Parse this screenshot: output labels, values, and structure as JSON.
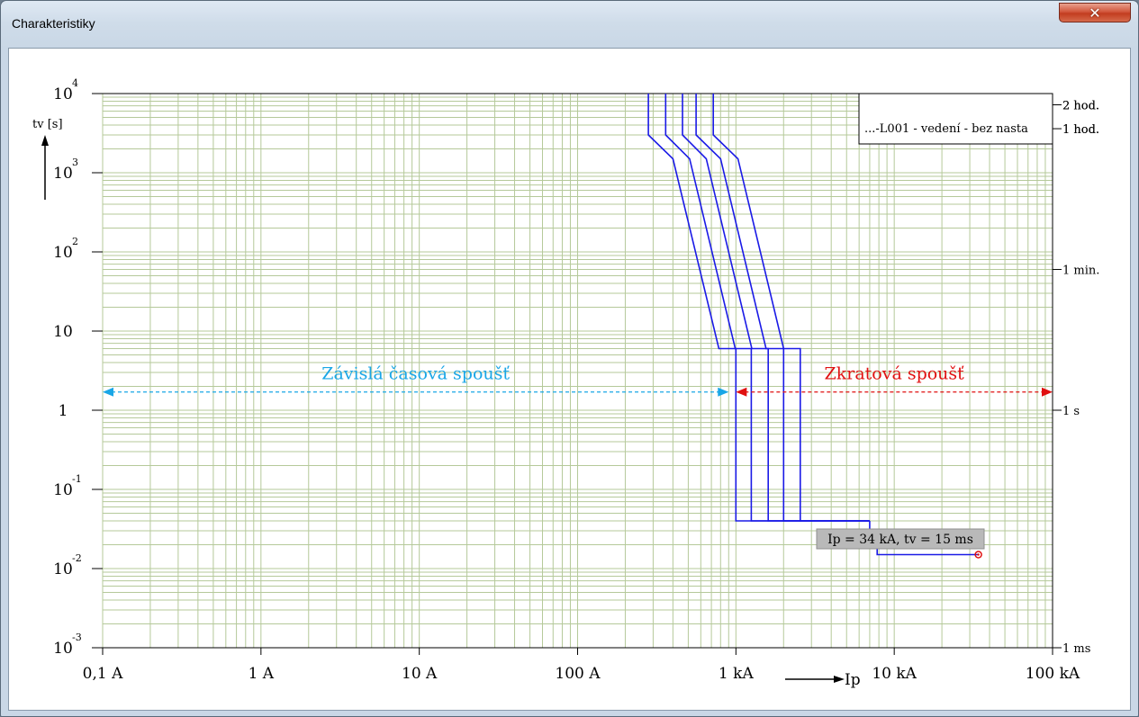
{
  "window": {
    "title": "Charakteristiky",
    "close_icon": "close-icon"
  },
  "chart_data": {
    "type": "line",
    "title": "",
    "xlabel": "Ip",
    "ylabel": "tv [s]",
    "x_scale": "log",
    "y_scale": "log",
    "xlim": [
      0.1,
      100000
    ],
    "ylim": [
      0.001,
      10000
    ],
    "x_unit": "A",
    "y_unit": "s",
    "x_tick_labels": [
      "0,1 A",
      "1 A",
      "10 A",
      "100 A",
      "1 kA",
      "10 kA",
      "100 kA"
    ],
    "y_tick_labels": [
      {
        "base": "10",
        "exp": "4"
      },
      {
        "base": "10",
        "exp": "3"
      },
      {
        "base": "10",
        "exp": "2"
      },
      {
        "base": "10",
        "exp": ""
      },
      {
        "base": "1",
        "exp": ""
      },
      {
        "base": "10",
        "exp": "-1"
      },
      {
        "base": "10",
        "exp": "-2"
      },
      {
        "base": "10",
        "exp": "-3"
      }
    ],
    "right_axis_labels": [
      "2 hod.",
      "1 hod.",
      "1 min.",
      "1 s",
      "1 ms"
    ],
    "legend": {
      "placement": "top-right",
      "entries": [
        "...-L001 - vedení - bez nasta"
      ]
    },
    "grid": true,
    "colors": {
      "grid": "#b5c99a",
      "curve": "#1a1ae6",
      "marker": "#e01010",
      "left_annotation": "#19a6e6",
      "right_annotation": "#e01010",
      "tooltip_bg": "#b9b9b9"
    },
    "series": [
      {
        "x": [
          280,
          280,
          400,
          780,
          1000,
          1000,
          7000
        ],
        "y": [
          10000,
          3000,
          1500,
          6,
          6,
          0.04,
          0.04
        ]
      },
      {
        "x": [
          360,
          360,
          510,
          990,
          1250,
          1250,
          7000
        ],
        "y": [
          10000,
          3000,
          1500,
          6,
          6,
          0.04,
          0.04
        ]
      },
      {
        "x": [
          460,
          460,
          650,
          1260,
          1600,
          1600,
          7000
        ],
        "y": [
          10000,
          3000,
          1500,
          6,
          6,
          0.04,
          0.04
        ]
      },
      {
        "x": [
          560,
          560,
          800,
          1550,
          2000,
          2000,
          7000
        ],
        "y": [
          10000,
          3000,
          1500,
          6,
          6,
          0.04,
          0.04
        ]
      },
      {
        "x": [
          720,
          720,
          1030,
          2000,
          2550,
          2550,
          7000
        ],
        "y": [
          10000,
          3000,
          1500,
          6,
          6,
          0.04,
          0.04
        ]
      },
      {
        "x": [
          7000,
          7000,
          7800,
          7800,
          34000
        ],
        "y": [
          0.04,
          0.018,
          0.018,
          0.015,
          0.015
        ]
      }
    ],
    "marker_point": {
      "x": 34000,
      "y": 0.015,
      "label": "Ip = 34 kA, tv = 15 ms"
    },
    "annotations": [
      {
        "text": "Závislá časová spoušť",
        "x_from": 0.1,
        "x_to": 900,
        "y": 1.7,
        "color": "#19a6e6"
      },
      {
        "text": "Zkratová spoušť",
        "x_from": 1000,
        "x_to": 100000,
        "y": 1.7,
        "color": "#e01010"
      }
    ]
  }
}
